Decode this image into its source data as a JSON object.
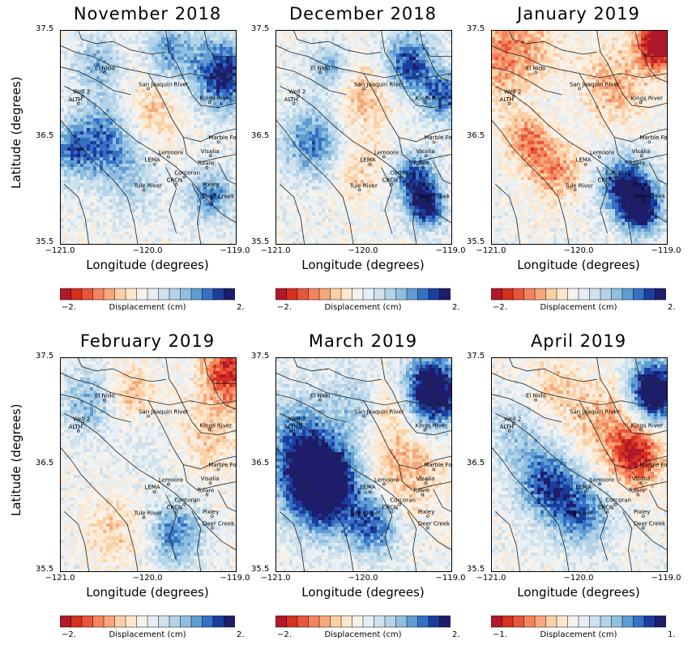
{
  "chart_data": {
    "type": "heatmap",
    "colorbar_colors": [
      "#b2182b",
      "#d6301f",
      "#e8553a",
      "#f4845c",
      "#f7a77b",
      "#fcd0a6",
      "#fde7cf",
      "#f7f2ea",
      "#e6eff5",
      "#cfe1ec",
      "#b3d3e8",
      "#8fbfe0",
      "#5f9dd2",
      "#3570c4",
      "#1b3e9e",
      "#1e1d6b"
    ],
    "panels": [
      {
        "title": "November 2018",
        "xlabel": "Longitude (degrees)",
        "ylabel": "Latitude (degrees)",
        "xticks": [
          "−121.0",
          "−120.0",
          "−119.0"
        ],
        "yticks": [
          "37.5",
          "36.5",
          "35.5"
        ],
        "xlim": [
          -121.0,
          -119.0
        ],
        "ylim": [
          35.5,
          37.5
        ],
        "colorbar": {
          "label": "Displacement (cm)",
          "min_label": "−2.",
          "max_label": "2."
        }
      },
      {
        "title": "December 2018",
        "xlabel": "Longitude (degrees)",
        "ylabel": "",
        "xticks": [
          "−121.0",
          "−120.0",
          "−119.0"
        ],
        "yticks": [
          "37.5",
          "36.5",
          "35.5"
        ],
        "xlim": [
          -121.0,
          -119.0
        ],
        "ylim": [
          35.5,
          37.5
        ],
        "colorbar": {
          "label": "Displacement (cm)",
          "min_label": "−2.",
          "max_label": "2."
        }
      },
      {
        "title": "January 2019",
        "xlabel": "Longitude (degrees)",
        "ylabel": "",
        "xticks": [
          "−121.0",
          "−120.0",
          "−119.0"
        ],
        "yticks": [
          "37.5",
          "36.5",
          "35.5"
        ],
        "xlim": [
          -121.0,
          -119.0
        ],
        "ylim": [
          35.5,
          37.5
        ],
        "colorbar": {
          "label": "Displacement (cm)",
          "min_label": "−2.",
          "max_label": "2."
        }
      },
      {
        "title": "February 2019",
        "xlabel": "Longitude (degrees)",
        "ylabel": "Latitude (degrees)",
        "xticks": [
          "−121.0",
          "−120.0",
          "−119.0"
        ],
        "yticks": [
          "37.5",
          "36.5",
          "35.5"
        ],
        "xlim": [
          -121.0,
          -119.0
        ],
        "ylim": [
          35.5,
          37.5
        ],
        "colorbar": {
          "label": "Displacement (cm)",
          "min_label": "−2.",
          "max_label": "2."
        }
      },
      {
        "title": "March 2019",
        "xlabel": "Longitude (degrees)",
        "ylabel": "",
        "xticks": [
          "−121.0",
          "−120.0",
          "−119.0"
        ],
        "yticks": [
          "37.5",
          "36.5",
          "35.5"
        ],
        "xlim": [
          -121.0,
          -119.0
        ],
        "ylim": [
          35.5,
          37.5
        ],
        "colorbar": {
          "label": "Displacement (cm)",
          "min_label": "−2.",
          "max_label": "2."
        }
      },
      {
        "title": "April 2019",
        "xlabel": "Longitude (degrees)",
        "ylabel": "",
        "xticks": [
          "−121.0",
          "−120.0",
          "−119.0"
        ],
        "yticks": [
          "37.5",
          "36.5",
          "35.5"
        ],
        "xlim": [
          -121.0,
          -119.0
        ],
        "ylim": [
          35.5,
          37.5
        ],
        "colorbar": {
          "label": "Displacement (cm)",
          "min_label": "−1.",
          "max_label": "1."
        }
      }
    ],
    "map_labels": [
      {
        "name": "El Nido",
        "lon": -120.5,
        "lat": 37.13
      },
      {
        "name": "San Joaquin River",
        "lon": -120.0,
        "lat": 36.98
      },
      {
        "name": "Well 2",
        "lon": -120.75,
        "lat": 36.91
      },
      {
        "name": "ALTH",
        "lon": -120.8,
        "lat": 36.84
      },
      {
        "name": "Kings River",
        "lon": -119.3,
        "lat": 36.85
      },
      {
        "name": "Marble Fork",
        "lon": -119.2,
        "lat": 36.48
      },
      {
        "name": "Lemoore",
        "lon": -119.77,
        "lat": 36.34
      },
      {
        "name": "Visalia",
        "lon": -119.29,
        "lat": 36.35
      },
      {
        "name": "LEMA",
        "lon": -119.93,
        "lat": 36.27
      },
      {
        "name": "Tulare",
        "lon": -119.33,
        "lat": 36.24
      },
      {
        "name": "Corcoran",
        "lon": -119.59,
        "lat": 36.15
      },
      {
        "name": "CRCN",
        "lon": -119.68,
        "lat": 36.08
      },
      {
        "name": "Tule River",
        "lon": -120.05,
        "lat": 36.03
      },
      {
        "name": "Pixley",
        "lon": -119.27,
        "lat": 36.04
      },
      {
        "name": "Deer Creek",
        "lon": -119.27,
        "lat": 35.93
      }
    ]
  }
}
